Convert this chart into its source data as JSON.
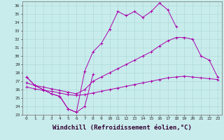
{
  "background_color": "#c8ecec",
  "grid_color": "#b0d8d8",
  "line_color": "#aa00aa",
  "xlabel": "Windchill (Refroidissement éolien,°C)",
  "ylim": [
    23,
    36.5
  ],
  "xlim": [
    -0.5,
    23.5
  ],
  "yticks": [
    23,
    24,
    25,
    26,
    27,
    28,
    29,
    30,
    31,
    32,
    33,
    34,
    35,
    36
  ],
  "xticks": [
    0,
    1,
    2,
    3,
    4,
    5,
    6,
    7,
    8,
    9,
    10,
    11,
    12,
    13,
    14,
    15,
    16,
    17,
    18,
    19,
    20,
    21,
    22,
    23
  ],
  "tick_fontsize": 4.5,
  "xlabel_fontsize": 6.5,
  "line1_x": [
    0,
    1,
    2,
    3,
    4,
    5,
    6,
    7,
    8,
    9,
    10,
    11,
    12,
    13,
    14,
    15,
    16,
    17,
    18
  ],
  "line1_y": [
    27.5,
    26.5,
    26.0,
    25.5,
    25.2,
    23.7,
    23.3,
    28.2,
    30.5,
    31.5,
    33.2,
    35.3,
    34.8,
    35.3,
    34.6,
    35.3,
    36.3,
    35.5,
    33.5
  ],
  "line2_x": [
    0,
    1,
    2,
    3,
    4,
    5,
    6,
    7,
    8
  ],
  "line2_y": [
    27.5,
    26.5,
    26.0,
    25.5,
    25.2,
    23.7,
    23.3,
    24.0,
    27.8
  ],
  "line3_x": [
    0,
    1,
    2,
    3,
    4,
    5,
    6,
    7,
    8,
    9,
    10,
    11,
    12,
    13,
    14,
    15,
    16,
    17,
    18,
    19,
    20,
    21,
    22,
    23
  ],
  "line3_y": [
    26.8,
    26.5,
    26.3,
    26.1,
    25.9,
    25.7,
    25.5,
    26.0,
    27.0,
    27.5,
    28.0,
    28.5,
    29.0,
    29.5,
    30.0,
    30.5,
    31.2,
    31.8,
    32.2,
    32.2,
    32.0,
    30.0,
    29.5,
    27.5
  ],
  "line4_x": [
    0,
    1,
    2,
    3,
    4,
    5,
    6,
    7,
    8,
    9,
    10,
    11,
    12,
    13,
    14,
    15,
    16,
    17,
    18,
    19,
    20,
    21,
    22,
    23
  ],
  "line4_y": [
    26.3,
    26.1,
    25.9,
    25.8,
    25.6,
    25.4,
    25.3,
    25.4,
    25.6,
    25.8,
    26.0,
    26.2,
    26.4,
    26.6,
    26.8,
    27.0,
    27.2,
    27.4,
    27.5,
    27.6,
    27.5,
    27.4,
    27.3,
    27.2
  ]
}
